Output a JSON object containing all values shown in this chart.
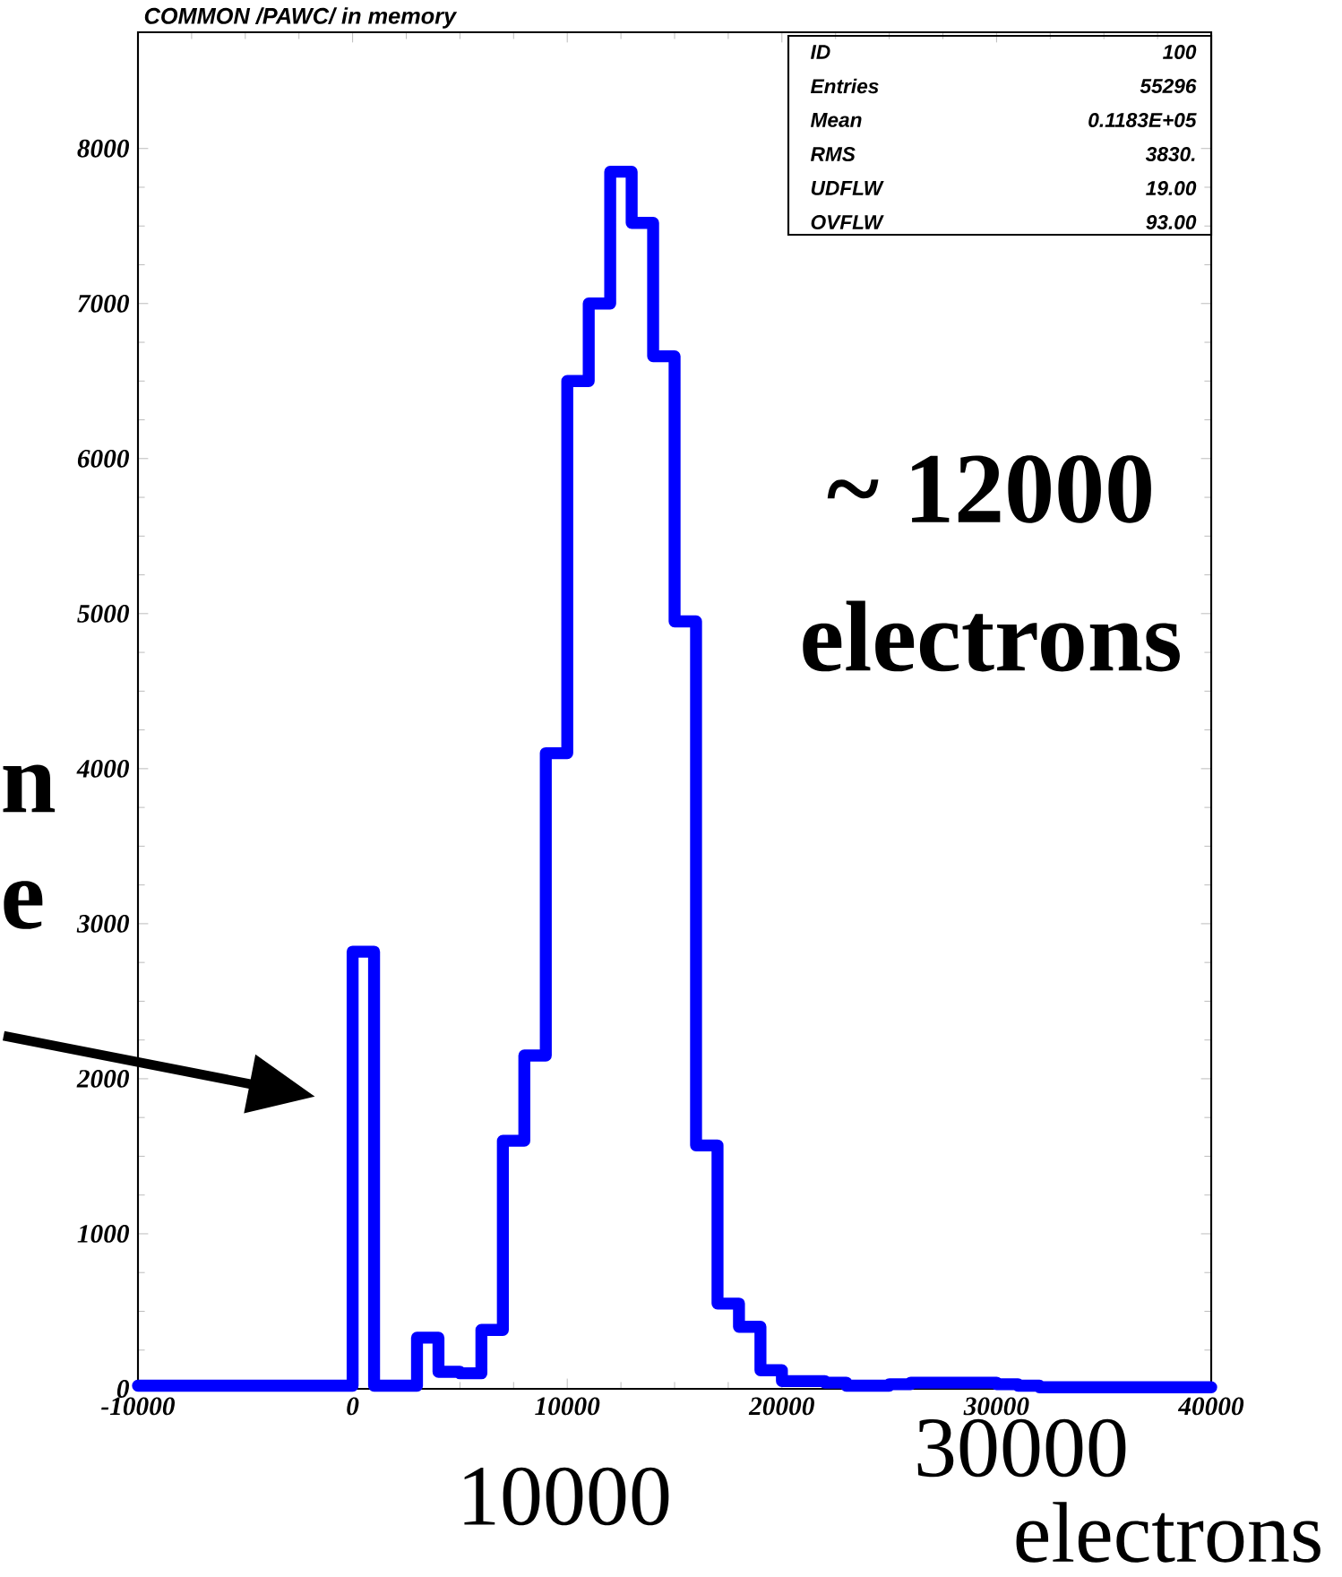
{
  "chart_data": {
    "type": "histogram",
    "title": "COMMON /PAWC/ in memory",
    "color": "#0000ff",
    "bins": [
      -10000,
      -9000,
      -8000,
      -7000,
      -6000,
      -5000,
      -4000,
      -3000,
      -2000,
      -1000,
      0,
      1000,
      2000,
      3000,
      4000,
      5000,
      6000,
      7000,
      8000,
      9000,
      10000,
      11000,
      12000,
      13000,
      14000,
      15000,
      16000,
      17000,
      18000,
      19000,
      20000,
      21000,
      22000,
      23000,
      24000,
      25000,
      26000,
      27000,
      28000,
      29000,
      30000,
      31000,
      32000,
      33000,
      34000,
      35000,
      36000,
      37000,
      38000,
      39000,
      40000
    ],
    "values": [
      20,
      20,
      20,
      20,
      20,
      20,
      20,
      20,
      20,
      20,
      2820,
      20,
      20,
      330,
      110,
      100,
      380,
      1600,
      2150,
      4100,
      6500,
      7000,
      7850,
      7520,
      6660,
      4950,
      1570,
      550,
      400,
      120,
      50,
      50,
      40,
      20,
      20,
      30,
      40,
      40,
      40,
      40,
      30,
      20,
      10,
      10,
      10,
      10,
      10,
      10,
      10,
      10
    ],
    "xlim": [
      -10000,
      40000
    ],
    "ylim": [
      0,
      8750
    ],
    "xticks": [
      -10000,
      0,
      10000,
      20000,
      30000,
      40000
    ],
    "yticks": [
      0,
      1000,
      2000,
      3000,
      4000,
      5000,
      6000,
      7000,
      8000
    ],
    "annotations": [
      "ID",
      "100",
      "Entries",
      "55296",
      "Mean",
      "0.1183E+05",
      "RMS",
      "3830.",
      "UDFLW",
      "19.00",
      "OVFLW",
      "93.00",
      "~ 12000",
      "electrons",
      "n",
      "e",
      "10000",
      "30000",
      "electrons"
    ]
  }
}
